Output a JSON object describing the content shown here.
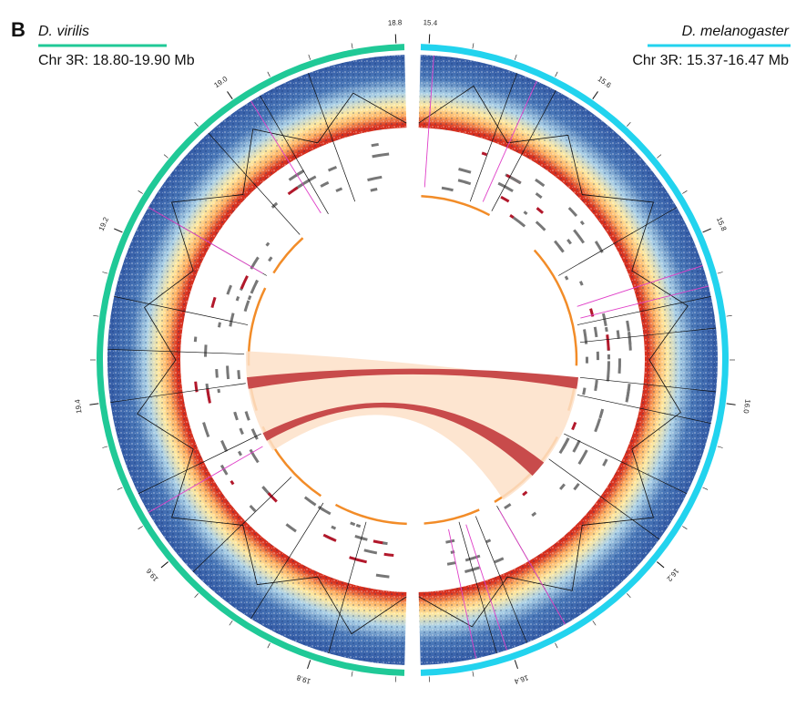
{
  "panel_label": "B",
  "left_genome": {
    "species": "D. virilis",
    "region": "Chr 3R: 18.80-19.90 Mb",
    "color": "#20c997",
    "ticks": [
      "18.8",
      "19.0",
      "19.2",
      "19.4",
      "19.6",
      "19.8"
    ]
  },
  "right_genome": {
    "species": "D. melanogaster",
    "region": "Chr 3R: 15.37-16.47 Mb",
    "color": "#22d3ee",
    "ticks": [
      "15.4",
      "15.6",
      "15.8",
      "16.0",
      "16.2",
      "16.4"
    ]
  },
  "colors": {
    "hic_dark": "#2b4f9e",
    "hic_mid": "#8fb3d9",
    "hic_light": "#f3e7b5",
    "hic_hot": "#d7301f",
    "gene_grey": "#777777",
    "gene_red": "#b2182b",
    "orange_track": "#f28c28",
    "synteny_fill": "#fde0c8",
    "synteny_link": "#c84b4b",
    "boundary_magenta": "#e040c8"
  }
}
